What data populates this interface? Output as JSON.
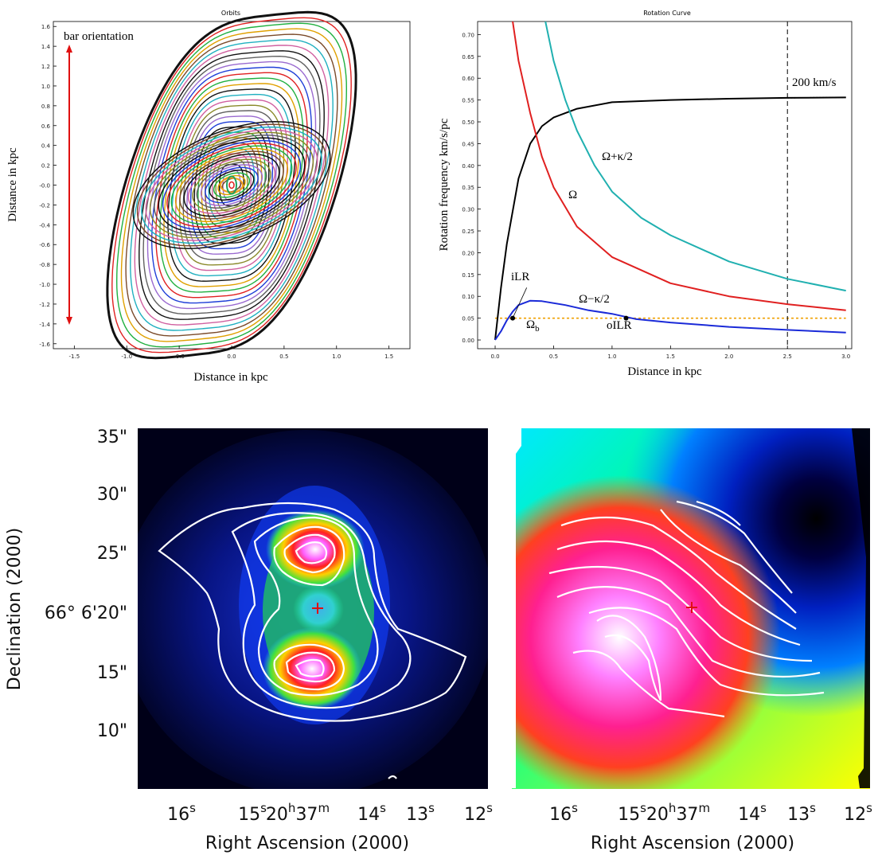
{
  "chart_data": [
    {
      "type": "line",
      "title": "Orbits",
      "xlabel": "Distance in kpc",
      "ylabel": "Distance in kpc",
      "xlim": [
        -1.7,
        1.7
      ],
      "ylim": [
        -1.65,
        1.65
      ],
      "x_ticks": [
        "-1.5",
        "-1.0",
        "-0.5",
        "0.0",
        "0.5",
        "1.0",
        "1.5"
      ],
      "y_ticks": [
        "1.6",
        "1.4",
        "1.2",
        "1.0",
        "0.8",
        "0.6",
        "0.4",
        "0.2",
        "-0.0",
        "-0.2",
        "-0.4",
        "-0.6",
        "-0.8",
        "-1.0",
        "-1.2",
        "-1.4",
        "-1.6"
      ],
      "annotation": "bar orientation",
      "orbit_colors": [
        "#1f3fd8",
        "#e02020",
        "#20b040",
        "#e0a000",
        "#7a4a2a",
        "#20b0c0",
        "#d060a0",
        "#8a8a2a",
        "#606060",
        "#9a6ad0"
      ]
    },
    {
      "type": "line",
      "title": "Rotation Curve",
      "xlabel": "Distance in kpc",
      "ylabel": "Rotation frequency km/s/pc",
      "xlim": [
        -0.15,
        3.05
      ],
      "ylim": [
        -0.02,
        0.73
      ],
      "x_ticks": [
        "0.0",
        "0.5",
        "1.0",
        "1.5",
        "2.0",
        "2.5",
        "3.0"
      ],
      "y_ticks": [
        "0.70",
        "0.65",
        "0.60",
        "0.55",
        "0.50",
        "0.45",
        "0.40",
        "0.35",
        "0.30",
        "0.25",
        "0.20",
        "0.15",
        "0.10",
        "0.05",
        "0.00"
      ],
      "vline_x": 2.5,
      "pattern_speed": 0.05,
      "series": [
        {
          "name": "V (200 km/s)",
          "color": "#000000",
          "x": [
            0.0,
            0.05,
            0.1,
            0.2,
            0.3,
            0.4,
            0.5,
            0.7,
            1.0,
            1.5,
            2.0,
            2.5,
            3.0
          ],
          "values": [
            0.0,
            0.12,
            0.22,
            0.37,
            0.45,
            0.49,
            0.51,
            0.53,
            0.545,
            0.55,
            0.553,
            0.555,
            0.556
          ]
        },
        {
          "name": "Ω",
          "color": "#e02020",
          "x": [
            0.15,
            0.2,
            0.3,
            0.4,
            0.5,
            0.7,
            1.0,
            1.5,
            2.0,
            2.5,
            3.0
          ],
          "values": [
            0.73,
            0.64,
            0.52,
            0.42,
            0.35,
            0.26,
            0.19,
            0.13,
            0.1,
            0.082,
            0.068
          ]
        },
        {
          "name": "Ω+κ/2",
          "color": "#20b0b0",
          "x": [
            0.43,
            0.5,
            0.6,
            0.7,
            0.85,
            1.0,
            1.25,
            1.5,
            2.0,
            2.5,
            3.0
          ],
          "values": [
            0.73,
            0.64,
            0.55,
            0.48,
            0.4,
            0.34,
            0.28,
            0.24,
            0.18,
            0.14,
            0.113
          ]
        },
        {
          "name": "Ω−κ/2",
          "color": "#1a2ad8",
          "x": [
            0.0,
            0.05,
            0.1,
            0.15,
            0.2,
            0.3,
            0.4,
            0.6,
            0.8,
            1.0,
            1.2,
            1.5,
            2.0,
            2.5,
            3.0
          ],
          "values": [
            0.0,
            0.02,
            0.045,
            0.065,
            0.08,
            0.09,
            0.089,
            0.08,
            0.068,
            0.06,
            0.048,
            0.04,
            0.03,
            0.023,
            0.017
          ]
        }
      ],
      "annotations": [
        "200 km/s",
        "Ω+κ/2",
        "Ω",
        "iLR",
        "Ω−κ/2",
        "Ωb",
        "oILR"
      ]
    },
    {
      "type": "heatmap",
      "title": "",
      "xlabel": "Right Ascension (2000)",
      "ylabel": "Declination (2000)",
      "x_ticks": [
        "16",
        "15",
        "20",
        "14",
        "13",
        "12"
      ],
      "x_tick_sup": [
        "s",
        "s",
        "h",
        "s",
        "s",
        "s"
      ],
      "x_tick_mid": "37",
      "x_tick_mid_sup": "m",
      "y_ticks": [
        "35\"",
        "30\"",
        "25\"",
        "66° 6'20\"",
        "15\"",
        "10\""
      ]
    },
    {
      "type": "heatmap",
      "title": "",
      "xlabel": "Right Ascension (2000)",
      "ylabel": "",
      "x_ticks": [
        "16",
        "15",
        "20",
        "14",
        "13",
        "12"
      ],
      "x_tick_sup": [
        "s",
        "s",
        "h",
        "s",
        "s",
        "s"
      ],
      "x_tick_mid": "37",
      "x_tick_mid_sup": "m"
    }
  ]
}
